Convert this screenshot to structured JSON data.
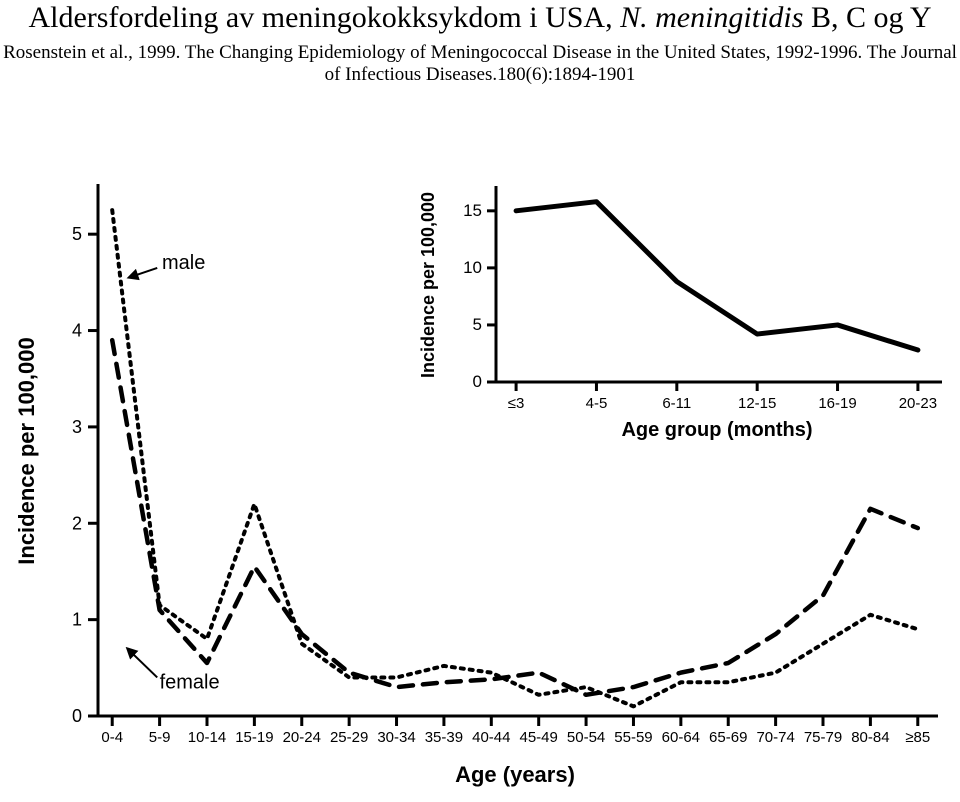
{
  "header": {
    "title_part1": "Aldersfordeling av meningokokksykdom i USA, ",
    "title_italic": "N. meningitidis",
    "title_part2": " B, C og Y",
    "citation": "Rosenstein et al., 1999. The Changing Epidemiology of Meningococcal Disease in the United States, 1992-1996. The Journal of Infectious Diseases.180(6):1894-1901"
  },
  "main_chart": {
    "type": "line",
    "x_label": "Age (years)",
    "y_label": "Incidence per 100,000",
    "x_categories": [
      "0-4",
      "5-9",
      "10-14",
      "15-19",
      "20-24",
      "25-29",
      "30-34",
      "35-39",
      "40-44",
      "45-49",
      "50-54",
      "55-59",
      "60-64",
      "65-69",
      "70-74",
      "75-79",
      "80-84",
      "≥85"
    ],
    "y_ticks": [
      0,
      1,
      2,
      3,
      4,
      5
    ],
    "y_min": 0,
    "y_max": 5.5,
    "axis_color": "#000000",
    "axis_width": 3,
    "tick_fontsize": 15,
    "axis_label_fontsize": 22,
    "axis_label_weight": "bold",
    "series": [
      {
        "name": "male",
        "label": "male",
        "dash": "3,6",
        "width": 4,
        "color": "#000000",
        "arrow_from": [
          0.95,
          4.65
        ],
        "arrow_to": [
          0.35,
          4.55
        ],
        "label_x": 1.05,
        "label_y": 4.7,
        "values": [
          5.25,
          1.15,
          0.8,
          2.2,
          0.75,
          0.4,
          0.4,
          0.52,
          0.45,
          0.22,
          0.3,
          0.1,
          0.35,
          0.35,
          0.45,
          0.75,
          1.05,
          0.9
        ]
      },
      {
        "name": "female",
        "label": "female",
        "dash": "14,10",
        "width": 4.5,
        "color": "#000000",
        "arrow_from": [
          0.95,
          0.4
        ],
        "arrow_to": [
          0.32,
          0.7
        ],
        "label_x": 1.0,
        "label_y": 0.35,
        "values": [
          3.9,
          1.1,
          0.55,
          1.55,
          0.85,
          0.45,
          0.3,
          0.35,
          0.38,
          0.45,
          0.22,
          0.3,
          0.45,
          0.55,
          0.85,
          1.25,
          2.15,
          1.95
        ]
      }
    ],
    "annotation_fontsize": 20
  },
  "inset_chart": {
    "type": "line",
    "x_label": "Age group (months)",
    "y_label": "Incidence per 100,000",
    "x_categories": [
      "≤3",
      "4-5",
      "6-11",
      "12-15",
      "16-19",
      "20-23"
    ],
    "y_ticks": [
      0,
      5,
      10,
      15
    ],
    "y_min": 0,
    "y_max": 17,
    "axis_color": "#000000",
    "axis_width": 3,
    "line_color": "#000000",
    "line_width": 5,
    "tick_fontsize": 15,
    "axis_label_fontsize": 20,
    "axis_label_weight": "bold",
    "values": [
      15.0,
      15.8,
      8.8,
      4.2,
      5.0,
      2.8
    ]
  }
}
